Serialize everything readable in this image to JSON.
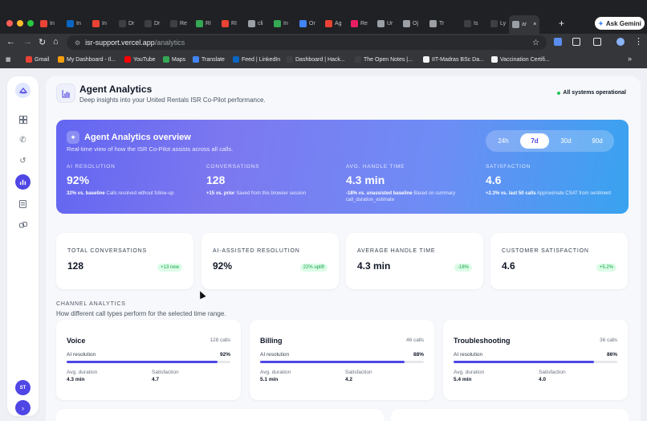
{
  "browser": {
    "tabs": [
      {
        "label": "In",
        "color": "#ea4335"
      },
      {
        "label": "In",
        "color": "#0a66c2"
      },
      {
        "label": "In",
        "color": "#ea4335"
      },
      {
        "label": "Dr",
        "color": "#3c4043"
      },
      {
        "label": "Dr",
        "color": "#3c4043"
      },
      {
        "label": "Re",
        "color": "#3c4043"
      },
      {
        "label": "RI",
        "color": "#34a853"
      },
      {
        "label": "RI",
        "color": "#ea4335"
      },
      {
        "label": "cli",
        "color": "#9aa0a6"
      },
      {
        "label": "In",
        "color": "#34a853"
      },
      {
        "label": "Or",
        "color": "#4285f4"
      },
      {
        "label": "Ag",
        "color": "#ea4335"
      },
      {
        "label": "Re",
        "color": "#e91e63"
      },
      {
        "label": "Ur",
        "color": "#9aa0a6"
      },
      {
        "label": "Oj",
        "color": "#9aa0a6"
      },
      {
        "label": "Tr",
        "color": "#9aa0a6"
      },
      {
        "label": "Is",
        "color": "#3c4043"
      },
      {
        "label": "Ly",
        "color": "#3c4043"
      },
      {
        "label": "ar",
        "color": "#9aa0a6"
      }
    ],
    "new_tab": "+",
    "gemini_label": "Ask Gemini",
    "url_host": "isr-support.vercel.app",
    "url_path": "/analytics",
    "bookmarks": [
      {
        "label": "Gmail",
        "color": "#ea4335"
      },
      {
        "label": "My Dashboard - Il...",
        "color": "#f59e0b"
      },
      {
        "label": "YouTube",
        "color": "#ff0000"
      },
      {
        "label": "Maps",
        "color": "#34a853"
      },
      {
        "label": "Translate",
        "color": "#4285f4"
      },
      {
        "label": "Feed | LinkedIn",
        "color": "#0a66c2"
      },
      {
        "label": "Dashboard | Hack...",
        "color": "#3c4043"
      },
      {
        "label": "The Open Notes |...",
        "color": "#3c4043"
      },
      {
        "label": "IIT-Madras BSc Da...",
        "color": "#f1f3f4"
      },
      {
        "label": "Vaccination Certifi...",
        "color": "#f1f3f4"
      }
    ],
    "more_bookmarks": "»"
  },
  "sidebar": {
    "avatar_initials": "ST",
    "expand_glyph": "›"
  },
  "header": {
    "title": "Agent Analytics",
    "subtitle": "Deep insights into your United Rentals ISR Co-Pilot performance.",
    "status": "All systems operational"
  },
  "hero": {
    "title": "Agent Analytics overview",
    "subtitle": "Real-time view of how the ISR Co-Pilot assists across all calls.",
    "ranges": [
      "24h",
      "7d",
      "30d",
      "90d"
    ],
    "selected_range": "7d",
    "metrics": [
      {
        "label": "AI RESOLUTION",
        "value": "92%",
        "delta": "32% vs. baseline",
        "note": "Calls resolved without follow-up"
      },
      {
        "label": "CONVERSATIONS",
        "value": "128",
        "delta": "+15 vs. prior",
        "note": "Saved from this browser session"
      },
      {
        "label": "AVG. HANDLE TIME",
        "value": "4.3 min",
        "delta": "-18% vs. unassisted baseline",
        "note": "Based on summary call_duration_estimate"
      },
      {
        "label": "SATISFACTION",
        "value": "4.6",
        "delta": "+2.3% vs. last 50 calls",
        "note": "Approximate CSAT from sentiment"
      }
    ]
  },
  "kpis": [
    {
      "label": "TOTAL CONVERSATIONS",
      "value": "128",
      "badge": "+13 new"
    },
    {
      "label": "AI-ASSISTED RESOLUTION",
      "value": "92%",
      "badge": "22% uplift"
    },
    {
      "label": "AVERAGE HANDLE TIME",
      "value": "4.3 min",
      "badge": "-18%"
    },
    {
      "label": "CUSTOMER SATISFACTION",
      "value": "4.6",
      "badge": "+5.2%"
    }
  ],
  "channels_section": {
    "label": "CHANNEL ANALYTICS",
    "subtitle": "How different call types perform for the selected time range."
  },
  "channels": [
    {
      "name": "Voice",
      "calls": "128 calls",
      "res_label": "AI resolution",
      "res_value": "92%",
      "res_fraction": 0.92,
      "dur_label": "Avg. duration",
      "dur_value": "4.3 min",
      "sat_label": "Satisfaction",
      "sat_value": "4.7"
    },
    {
      "name": "Billing",
      "calls": "46 calls",
      "res_label": "AI resolution",
      "res_value": "88%",
      "res_fraction": 0.88,
      "dur_label": "Avg. duration",
      "dur_value": "5.1 min",
      "sat_label": "Satisfaction",
      "sat_value": "4.2"
    },
    {
      "name": "Troubleshooting",
      "calls": "36 calls",
      "res_label": "AI resolution",
      "res_value": "86%",
      "res_fraction": 0.86,
      "dur_label": "Avg. duration",
      "dur_value": "5.4 min",
      "sat_label": "Satisfaction",
      "sat_value": "4.0"
    }
  ],
  "colors": {
    "accent": "#4f46e5",
    "success": "#16a34a",
    "hero_start": "#6366f1",
    "hero_end": "#38a3f0"
  }
}
